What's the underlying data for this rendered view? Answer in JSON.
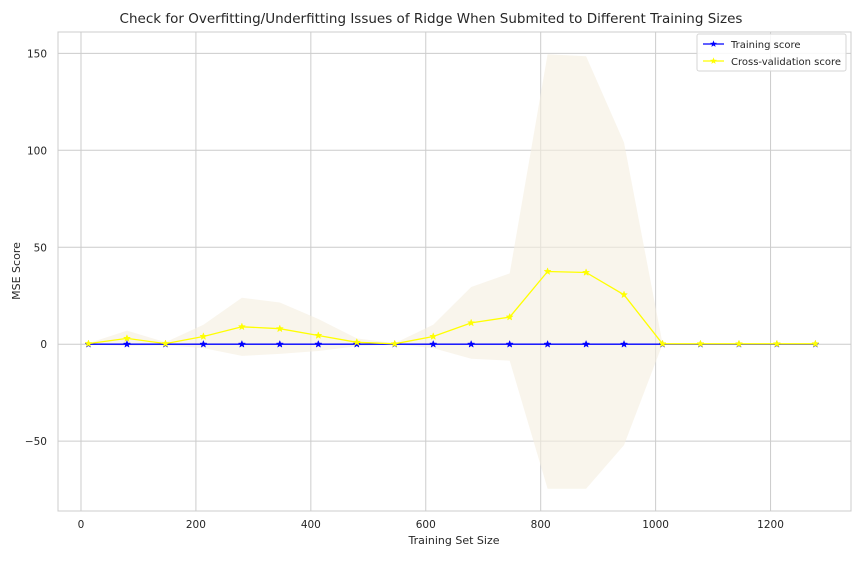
{
  "chart_data": {
    "type": "line",
    "title": "Check for Overfitting/Underfitting Issues of Ridge When Submited to Different Training Sizes",
    "xlabel": "Training Set Size",
    "ylabel": "MSE Score",
    "xlim": [
      -40,
      1340
    ],
    "ylim": [
      -86,
      161
    ],
    "xticks": [
      0,
      200,
      400,
      600,
      800,
      1000,
      1200
    ],
    "xtick_labels": [
      "0",
      "200",
      "400",
      "600",
      "800",
      "1000",
      "1200"
    ],
    "yticks": [
      -50,
      0,
      50,
      100,
      150
    ],
    "ytick_labels": [
      "−50",
      "0",
      "50",
      "100",
      "150"
    ],
    "grid": true,
    "legend_position": "top-right",
    "x": [
      13,
      80,
      147,
      213,
      280,
      346,
      413,
      480,
      546,
      613,
      679,
      746,
      812,
      879,
      945,
      1012,
      1078,
      1145,
      1211,
      1278
    ],
    "series": [
      {
        "name": "Training score",
        "color": "#0000ff",
        "marker": "star",
        "values": [
          0,
          0,
          0,
          0,
          0,
          0,
          0,
          0,
          0,
          0,
          0,
          0,
          0,
          0,
          0,
          0,
          0,
          0,
          0,
          0
        ]
      },
      {
        "name": "Cross-validation score",
        "color": "#ffff00",
        "marker": "star",
        "values": [
          0.3,
          3,
          0.3,
          4,
          9,
          8,
          4.5,
          1,
          0.2,
          4,
          11,
          14,
          37.5,
          37,
          25.5,
          0.2,
          0.2,
          0.2,
          0.2,
          0.2
        ],
        "band_upper": [
          0.5,
          7,
          1,
          10,
          24,
          21.5,
          13,
          3,
          0.5,
          10,
          29.5,
          36.5,
          149.5,
          148.5,
          104,
          0.5,
          0.5,
          0.5,
          0.5,
          0.5
        ],
        "band_lower": [
          0,
          -1,
          -0.5,
          -2,
          -6,
          -5,
          -3.5,
          -1,
          0,
          -2,
          -7.5,
          -8.5,
          -74.5,
          -74.5,
          -52,
          0,
          0,
          0,
          0,
          0
        ],
        "band_color": "#f5efe0"
      }
    ]
  }
}
